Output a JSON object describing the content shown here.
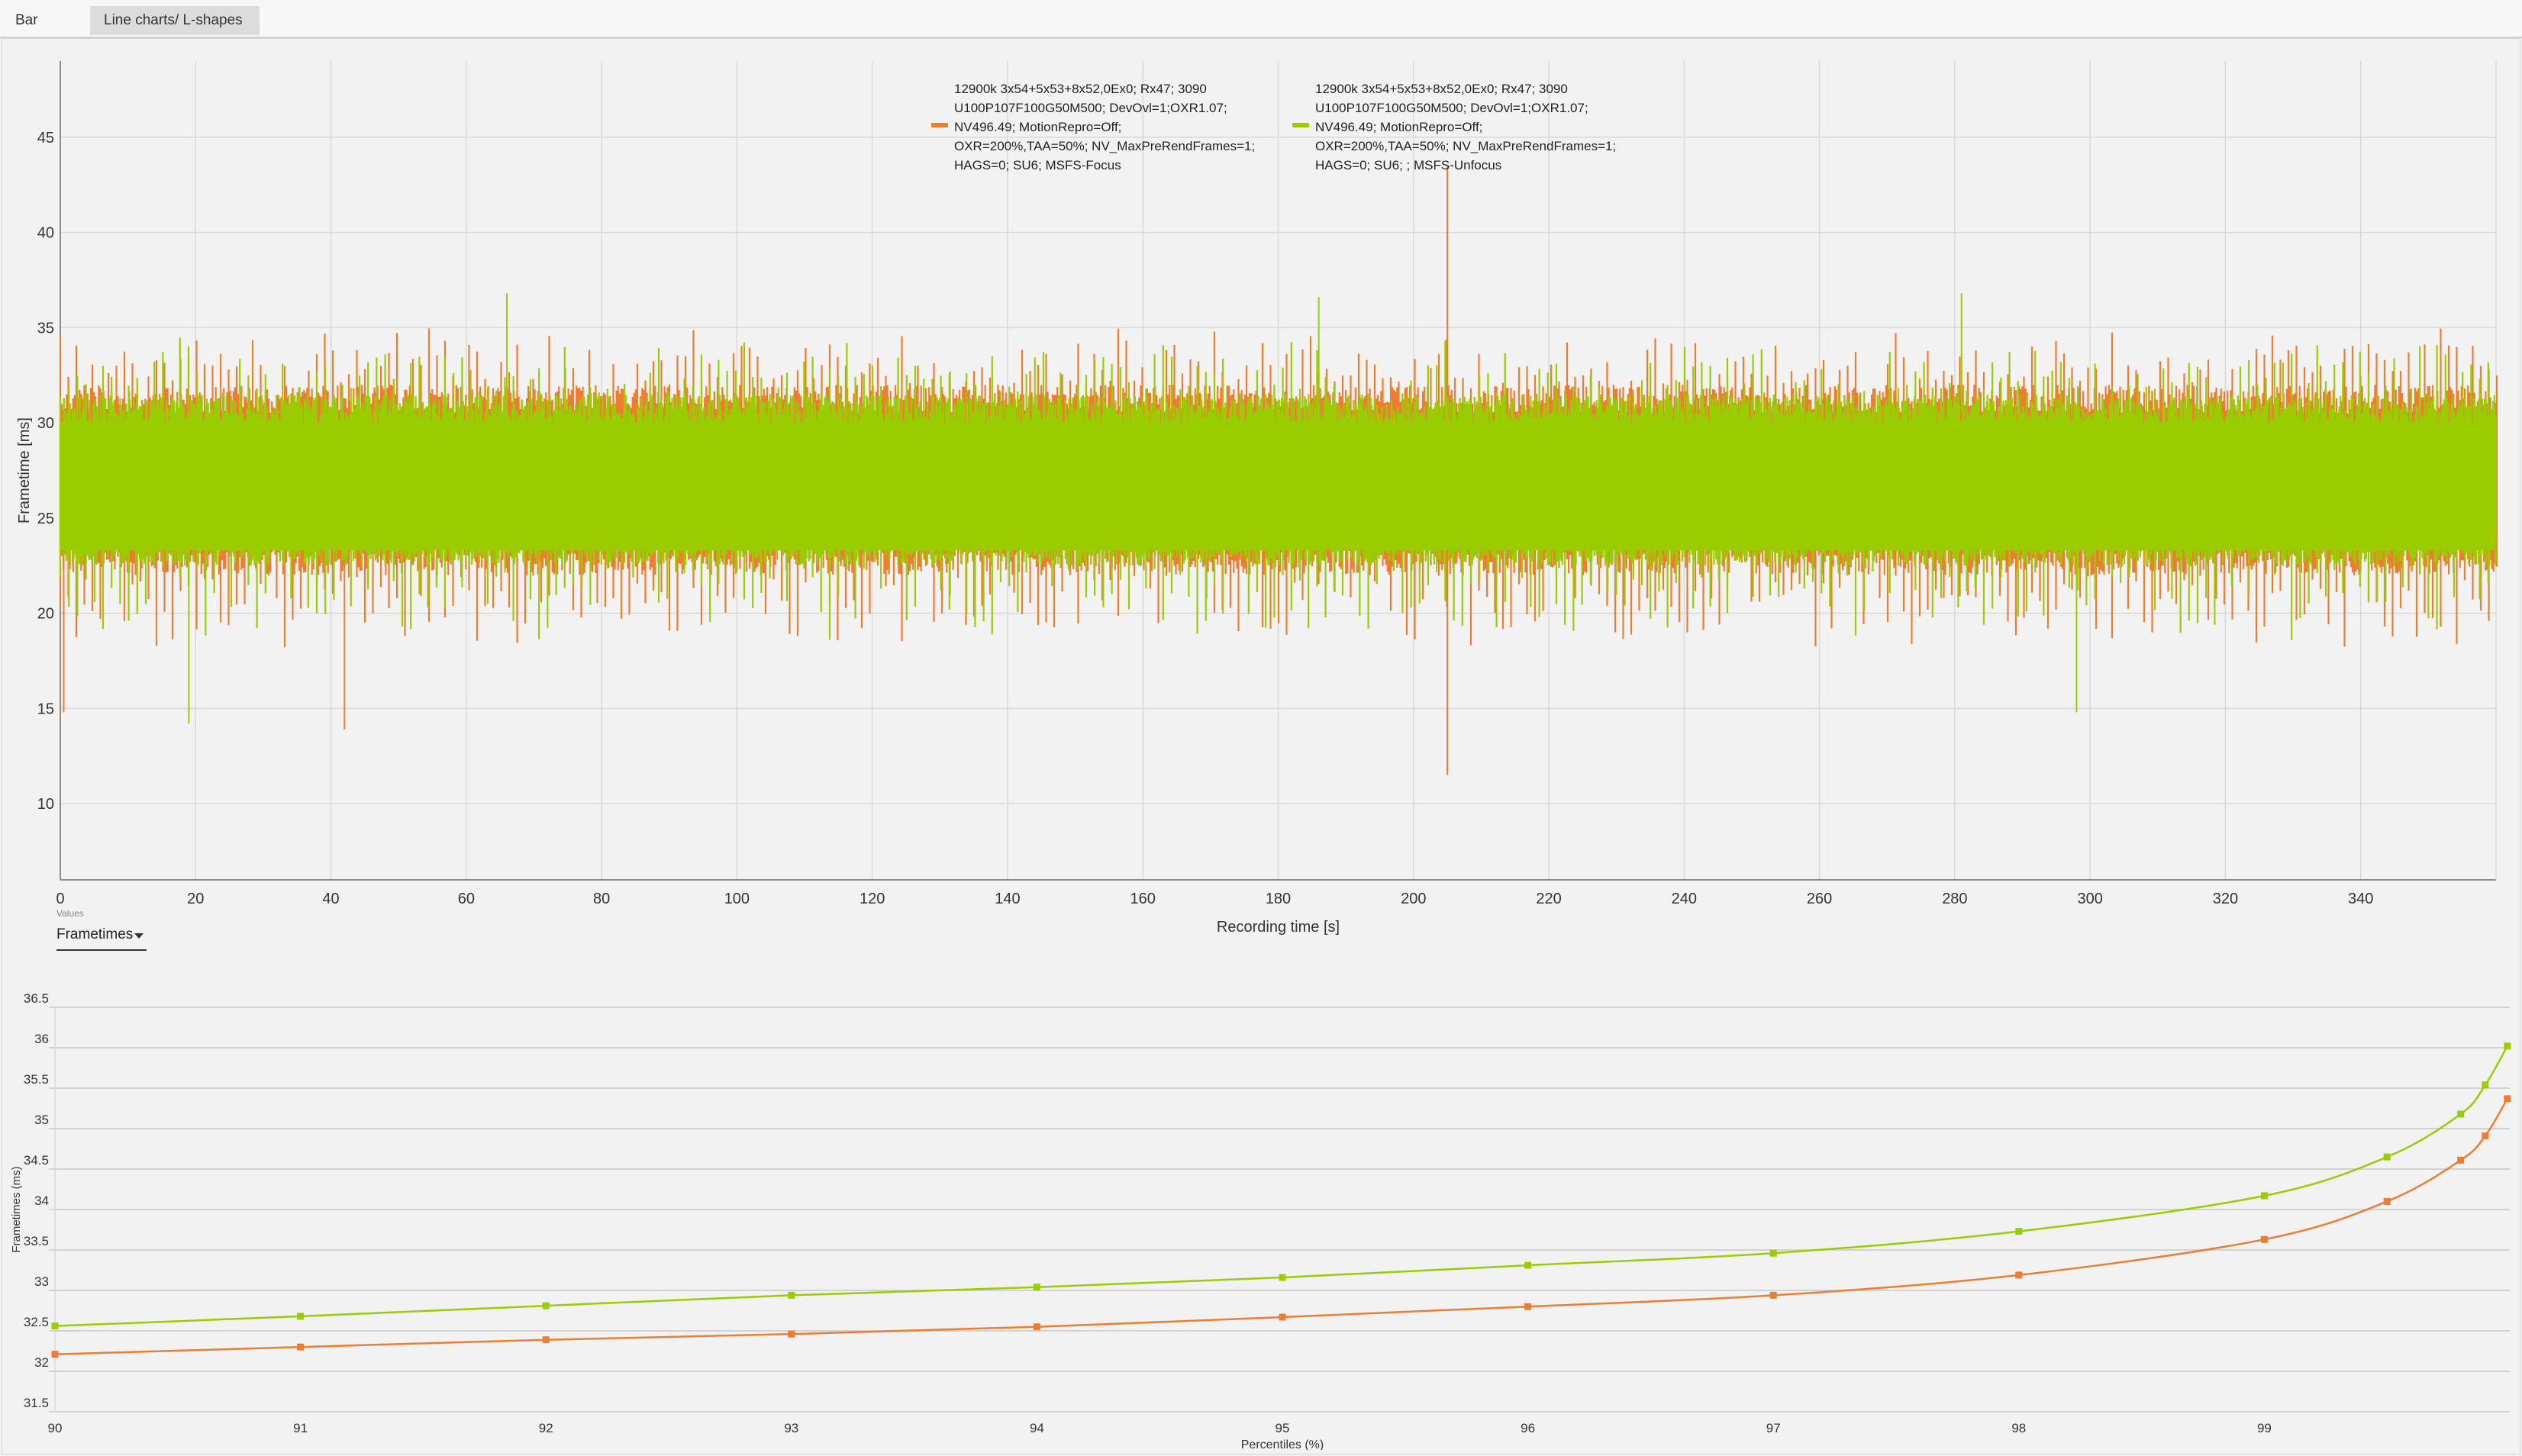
{
  "tabs": [
    {
      "label": "Bar charts",
      "active": false
    },
    {
      "label": "Line charts/ L-shapes",
      "active": true
    }
  ],
  "values_dropdown": {
    "caption": "Values",
    "selected": "Frametimes",
    "options": [
      "Frametimes"
    ]
  },
  "colors": {
    "orange": "#ed7d31",
    "green": "#9acd00",
    "grid": "#d9d9d9",
    "axis": "#8c8c8c"
  },
  "chart_data": [
    {
      "type": "line",
      "xlabel": "Recording time [s]",
      "ylabel": "Frametime [ms]",
      "xlim": [
        0,
        360
      ],
      "ylim": [
        6,
        49
      ],
      "xticks": [
        0,
        20,
        40,
        60,
        80,
        100,
        120,
        140,
        160,
        180,
        200,
        220,
        240,
        260,
        280,
        300,
        320,
        340
      ],
      "yticks": [
        10,
        15,
        20,
        25,
        30,
        35,
        40,
        45
      ],
      "grid": true,
      "legend_position": "top-center",
      "series": [
        {
          "name": "12900k 3x54+5x53+8x52,0Ex0; Rx47; 3090\nU100P107F100G50M500; DevOvl=1;OXR1.07;\nNV496.49; MotionRepro=Off;\nOXR=200%,TAA=50%; NV_MaxPreRendFrames=1;\nHAGS=0; SU6; MSFS-Focus",
          "color": "#ed7d31",
          "typical_range_ms": [
            22,
            32
          ],
          "extremes": [
            {
              "x": 0.5,
              "y": 14.8
            },
            {
              "x": 42,
              "y": 13.9
            },
            {
              "x": 205,
              "y": 43.5
            },
            {
              "x": 205,
              "y": 11.5
            }
          ]
        },
        {
          "name": "12900k 3x54+5x53+8x52,0Ex0; Rx47; 3090\nU100P107F100G50M500; DevOvl=1;OXR1.07;\nNV496.49; MotionRepro=Off;\nOXR=200%,TAA=50%; NV_MaxPreRendFrames=1;\nHAGS=0; SU6; ; MSFS-Unfocus",
          "color": "#9acd00",
          "typical_range_ms": [
            22.5,
            31.5
          ],
          "extremes": [
            {
              "x": 19,
              "y": 14.2
            },
            {
              "x": 66,
              "y": 36.8
            },
            {
              "x": 186,
              "y": 36.6
            },
            {
              "x": 281,
              "y": 36.8
            },
            {
              "x": 298,
              "y": 14.8
            }
          ]
        }
      ]
    },
    {
      "type": "line",
      "xlabel": "Percentiles (%)",
      "ylabel": "Frametimes (ms)",
      "xlim": [
        90,
        100
      ],
      "ylim": [
        31.5,
        36.5
      ],
      "xticks": [
        90,
        91,
        92,
        93,
        94,
        95,
        96,
        97,
        98,
        99
      ],
      "yticks": [
        31.5,
        32,
        32.5,
        33,
        33.5,
        34,
        34.5,
        35,
        35.5,
        36,
        36.5
      ],
      "grid": true,
      "series": [
        {
          "color": "#9acd00",
          "x": [
            90,
            91,
            92,
            93,
            94,
            95,
            96,
            97,
            98,
            99,
            99.5,
            99.8,
            99.9,
            99.99
          ],
          "y": [
            32.56,
            32.68,
            32.81,
            32.94,
            33.04,
            33.16,
            33.31,
            33.46,
            33.73,
            34.17,
            34.65,
            35.18,
            35.54,
            36.02
          ]
        },
        {
          "color": "#ed7d31",
          "x": [
            90,
            91,
            92,
            93,
            94,
            95,
            96,
            97,
            98,
            99,
            99.5,
            99.8,
            99.9,
            99.99
          ],
          "y": [
            32.21,
            32.3,
            32.39,
            32.46,
            32.55,
            32.67,
            32.8,
            32.94,
            33.19,
            33.63,
            34.1,
            34.61,
            34.91,
            35.37
          ]
        }
      ]
    }
  ]
}
